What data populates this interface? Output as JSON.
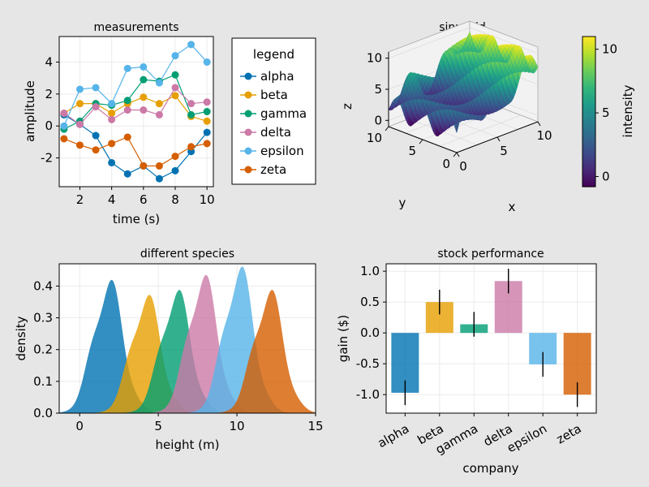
{
  "colors": {
    "background": "#e6e6e6",
    "axes_background": "#ffffff",
    "grid": "#ebebeb",
    "palette": [
      "#0072b2",
      "#e69f00",
      "#009e73",
      "#cc79a7",
      "#56b4e9",
      "#d55e00"
    ]
  },
  "chart_data": [
    {
      "type": "line",
      "title": "measurements",
      "xlabel": "time (s)",
      "ylabel": "amplitude",
      "xlim": [
        0.7,
        10.4
      ],
      "ylim": [
        -3.8,
        5.6
      ],
      "xticks": [
        2,
        4,
        6,
        8,
        10
      ],
      "xtick_labels": [
        "2",
        "4",
        "6",
        "8",
        "10"
      ],
      "yticks": [
        -2,
        0,
        2,
        4
      ],
      "ytick_labels": [
        "-2",
        "0",
        "2",
        "4"
      ],
      "grid": true,
      "markers": true,
      "x": [
        1,
        2,
        3,
        4,
        5,
        6,
        7,
        8,
        9,
        10
      ],
      "legend": {
        "title": "legend",
        "placement": "outside-right"
      },
      "series": [
        {
          "name": "alpha",
          "values": [
            0.7,
            0.1,
            -0.6,
            -2.3,
            -3.0,
            -2.5,
            -3.3,
            -2.8,
            -1.6,
            -0.4
          ]
        },
        {
          "name": "beta",
          "values": [
            0.8,
            1.4,
            1.4,
            0.8,
            1.4,
            1.8,
            1.4,
            1.9,
            0.6,
            0.3
          ]
        },
        {
          "name": "gamma",
          "values": [
            -0.2,
            0.3,
            1.4,
            1.3,
            1.6,
            2.9,
            2.8,
            3.2,
            0.7,
            0.9
          ]
        },
        {
          "name": "delta",
          "values": [
            0.8,
            0.1,
            1.2,
            0.4,
            1.0,
            1.0,
            0.7,
            2.4,
            1.4,
            1.5
          ]
        },
        {
          "name": "epsilon",
          "values": [
            0.0,
            2.3,
            2.4,
            1.4,
            3.6,
            3.7,
            2.7,
            4.4,
            5.1,
            4.0
          ]
        },
        {
          "name": "zeta",
          "values": [
            -0.8,
            -1.2,
            -1.5,
            -1.1,
            -0.7,
            -2.5,
            -2.5,
            -1.9,
            -1.3,
            -1.1
          ]
        }
      ]
    },
    {
      "type": "surface",
      "title": "sinusoid",
      "xlabel": "x",
      "ylabel": "y",
      "zlabel": "z",
      "xlim": [
        0,
        10
      ],
      "ylim": [
        0,
        10
      ],
      "zlim": [
        -1,
        11
      ],
      "xticks": [
        0,
        5,
        10
      ],
      "xtick_labels": [
        "0",
        "5",
        "10"
      ],
      "yticks": [
        0,
        5,
        10
      ],
      "ytick_labels": [
        "0",
        "5",
        "10"
      ],
      "zticks": [
        0,
        5,
        10
      ],
      "ztick_labels": [
        "0",
        "5",
        "10"
      ],
      "colormap": "viridis",
      "colorbar": {
        "label": "intensity",
        "range": [
          -0.8,
          11
        ],
        "ticks": [
          0,
          5,
          10
        ],
        "tick_labels": [
          "0",
          "5",
          "10"
        ]
      }
    },
    {
      "type": "area",
      "title": "different species",
      "xlabel": "height (m)",
      "ylabel": "density",
      "xlim": [
        -1.3,
        15
      ],
      "ylim": [
        0,
        0.47
      ],
      "xticks": [
        0,
        5,
        10,
        15
      ],
      "xtick_labels": [
        "0",
        "5",
        "10",
        "15"
      ],
      "yticks": [
        0,
        0.1,
        0.2,
        0.3,
        0.4
      ],
      "ytick_labels": [
        "0.0",
        "0.1",
        "0.2",
        "0.3",
        "0.4"
      ],
      "grid": true,
      "series": [
        {
          "peak_x": 1.8,
          "peak_density": 0.4
        },
        {
          "peak_x": 4.2,
          "peak_density": 0.355
        },
        {
          "peak_x": 6.1,
          "peak_density": 0.37
        },
        {
          "peak_x": 7.8,
          "peak_density": 0.415
        },
        {
          "peak_x": 10.1,
          "peak_density": 0.44
        },
        {
          "peak_x": 12.0,
          "peak_density": 0.37
        }
      ]
    },
    {
      "type": "bar",
      "title": "stock performance",
      "xlabel": "company",
      "ylabel": "gain ($)",
      "categories": [
        "alpha",
        "beta",
        "gamma",
        "delta",
        "epsilon",
        "zeta"
      ],
      "values": [
        -0.97,
        0.5,
        0.14,
        0.84,
        -0.51,
        -1.0
      ],
      "errors": [
        0.2,
        0.2,
        0.2,
        0.2,
        0.2,
        0.2
      ],
      "ylim": [
        -1.3,
        1.12
      ],
      "yticks": [
        -1.0,
        -0.5,
        0.0,
        0.5,
        1.0
      ],
      "ytick_labels": [
        "-1.0",
        "-0.5",
        "0.0",
        "0.5",
        "1.0"
      ],
      "grid": true
    }
  ]
}
